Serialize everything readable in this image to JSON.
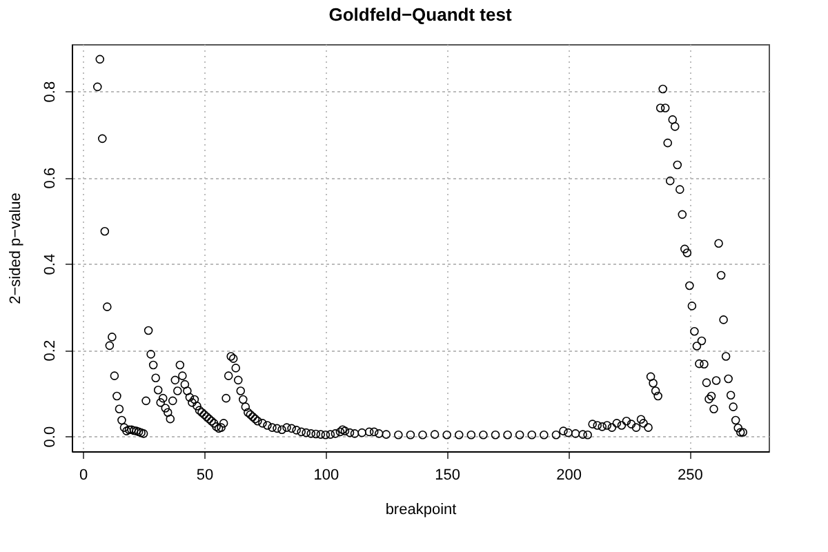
{
  "chart_data": {
    "type": "scatter",
    "title": "Goldfeld−Quandt test",
    "xlabel": "breakpoint",
    "ylabel": "2−sided p−value",
    "x": [
      6,
      7,
      8,
      9,
      10,
      11,
      12,
      13,
      14,
      15,
      16,
      17,
      18,
      19,
      20,
      21,
      22,
      23,
      24,
      25,
      26,
      27,
      28,
      29,
      30,
      31,
      32,
      33,
      34,
      35,
      36,
      37,
      38,
      39,
      40,
      41,
      42,
      43,
      44,
      45,
      46,
      47,
      48,
      49,
      50,
      51,
      52,
      53,
      54,
      55,
      56,
      57,
      58,
      59,
      60,
      61,
      62,
      63,
      64,
      65,
      66,
      67,
      68,
      69,
      70,
      71,
      72,
      74,
      76,
      78,
      80,
      82,
      84,
      86,
      88,
      90,
      92,
      94,
      96,
      98,
      100,
      102,
      104,
      106,
      107,
      108,
      110,
      112,
      115,
      118,
      120,
      122,
      125,
      130,
      135,
      140,
      145,
      150,
      155,
      160,
      165,
      170,
      175,
      180,
      185,
      190,
      195,
      198,
      200,
      203,
      206,
      208,
      210,
      212,
      214,
      216,
      218,
      220,
      222,
      224,
      226,
      228,
      230,
      231,
      233,
      234,
      235,
      236,
      237,
      238,
      239,
      240,
      241,
      242,
      243,
      244,
      245,
      246,
      247,
      248,
      249,
      250,
      251,
      252,
      253,
      254,
      255,
      256,
      257,
      258,
      259,
      260,
      261,
      262,
      263,
      264,
      265,
      266,
      267,
      268,
      269,
      270,
      271,
      272
    ],
    "values": [
      0.81,
      0.874,
      0.69,
      0.475,
      0.3,
      0.21,
      0.23,
      0.14,
      0.093,
      0.063,
      0.037,
      0.02,
      0.012,
      0.015,
      0.015,
      0.013,
      0.012,
      0.01,
      0.008,
      0.006,
      0.082,
      0.245,
      0.19,
      0.165,
      0.135,
      0.107,
      0.078,
      0.088,
      0.065,
      0.055,
      0.04,
      0.082,
      0.13,
      0.105,
      0.165,
      0.14,
      0.12,
      0.105,
      0.09,
      0.078,
      0.085,
      0.07,
      0.06,
      0.055,
      0.05,
      0.045,
      0.04,
      0.035,
      0.03,
      0.022,
      0.018,
      0.02,
      0.03,
      0.088,
      0.14,
      0.185,
      0.18,
      0.158,
      0.13,
      0.105,
      0.085,
      0.068,
      0.055,
      0.05,
      0.045,
      0.04,
      0.035,
      0.03,
      0.025,
      0.02,
      0.018,
      0.015,
      0.02,
      0.018,
      0.014,
      0.01,
      0.008,
      0.006,
      0.005,
      0.004,
      0.003,
      0.004,
      0.006,
      0.01,
      0.015,
      0.012,
      0.008,
      0.006,
      0.008,
      0.01,
      0.01,
      0.006,
      0.004,
      0.003,
      0.003,
      0.003,
      0.004,
      0.003,
      0.003,
      0.003,
      0.003,
      0.003,
      0.003,
      0.003,
      0.003,
      0.003,
      0.003,
      0.012,
      0.008,
      0.006,
      0.004,
      0.003,
      0.028,
      0.025,
      0.022,
      0.025,
      0.02,
      0.03,
      0.025,
      0.035,
      0.028,
      0.02,
      0.039,
      0.03,
      0.02,
      0.138,
      0.123,
      0.105,
      0.093,
      0.761,
      0.805,
      0.761,
      0.68,
      0.592,
      0.734,
      0.718,
      0.629,
      0.572,
      0.514,
      0.434,
      0.425,
      0.349,
      0.302,
      0.243,
      0.209,
      0.168,
      0.221,
      0.167,
      0.124,
      0.086,
      0.093,
      0.063,
      0.129,
      0.447,
      0.373,
      0.27,
      0.185,
      0.133,
      0.095,
      0.068,
      0.037,
      0.019,
      0.009,
      0.009
    ],
    "color": "#000000",
    "marker": "circle",
    "xlim": [
      -4.6,
      282.6
    ],
    "ylim": [
      -0.035,
      0.909
    ],
    "xticks": [
      0,
      50,
      100,
      150,
      200,
      250
    ],
    "yticks": [
      {
        "value": 0,
        "label": "0.0"
      },
      {
        "value": 0.2,
        "label": "0.2"
      },
      {
        "value": 0.4,
        "label": "0.4"
      },
      {
        "value": 0.6,
        "label": "0.6"
      },
      {
        "value": 0.8,
        "label": "0.8"
      }
    ],
    "grid": true
  }
}
